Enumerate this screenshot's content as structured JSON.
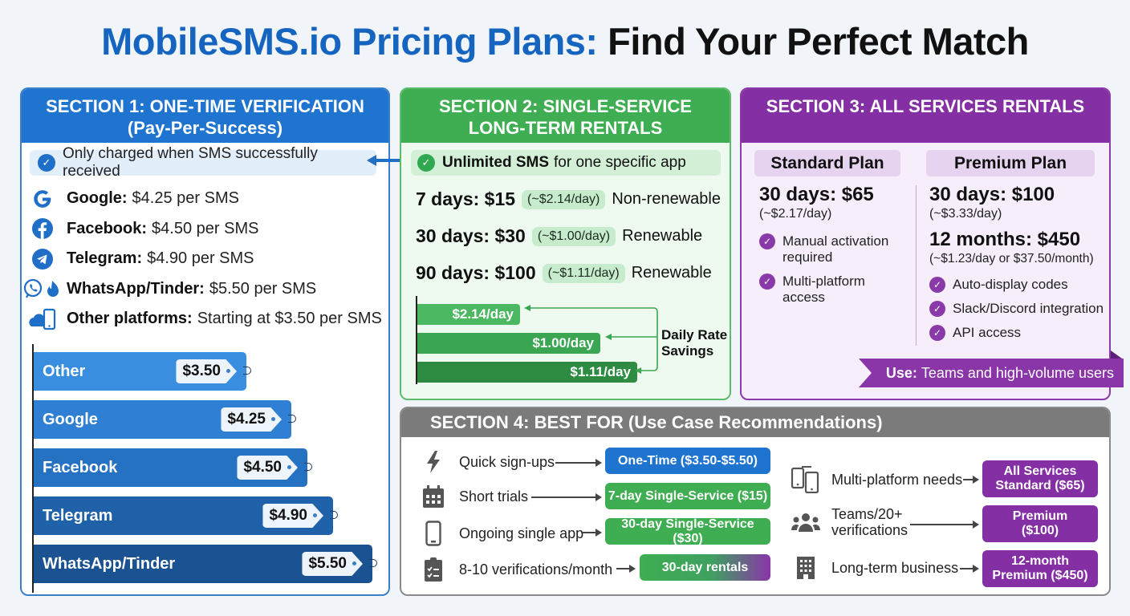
{
  "header": {
    "title_brand": "MobileSMS.io Pricing Plans:",
    "title_rest": "Find Your Perfect Match"
  },
  "colors": {
    "brand_blue": "#1565c0",
    "section1": "#1f74d0",
    "section2": "#3fae52",
    "section3": "#842fa4",
    "section4": "#7b7b7b"
  },
  "section1": {
    "title_line1": "SECTION 1: ONE-TIME VERIFICATION",
    "title_line2": "(Pay-Per-Success)",
    "note": "Only charged when SMS successfully received",
    "platforms": [
      {
        "icon": "google-icon",
        "name": "Google:",
        "price": "$4.25 per SMS"
      },
      {
        "icon": "facebook-icon",
        "name": "Facebook:",
        "price": "$4.50 per SMS"
      },
      {
        "icon": "telegram-icon",
        "name": "Telegram:",
        "price": "$4.90 per SMS"
      },
      {
        "icon": "whatsapp-tinder-icon",
        "name": "WhatsApp/Tinder:",
        "price": "$5.50 per SMS"
      },
      {
        "icon": "cloud-phone-icon",
        "name": "Other platforms:",
        "price": "Starting at $3.50 per SMS"
      }
    ],
    "bars": [
      {
        "label": "Other",
        "value": "$3.50"
      },
      {
        "label": "Google",
        "value": "$4.25"
      },
      {
        "label": "Facebook",
        "value": "$4.50"
      },
      {
        "label": "Telegram",
        "value": "$4.90"
      },
      {
        "label": "WhatsApp/Tinder",
        "value": "$5.50"
      }
    ]
  },
  "section2": {
    "title_line1": "SECTION 2: SINGLE-SERVICE",
    "title_line2": "LONG-TERM RENTALS",
    "note_bold": "Unlimited SMS",
    "note_rest": "for one specific app",
    "rentals": [
      {
        "price": "7 days: $15",
        "daily": "(~$2.14/day)",
        "renewal": "Non-renewable"
      },
      {
        "price": "30 days: $30",
        "daily": "(~$1.00/day)",
        "renewal": "Renewable"
      },
      {
        "price": "90 days: $100",
        "daily": "(~$1.11/day)",
        "renewal": "Renewable"
      }
    ],
    "bars": [
      {
        "label": "$2.14/day"
      },
      {
        "label": "$1.00/day"
      },
      {
        "label": "$1.11/day"
      }
    ],
    "bars_caption_line1": "Daily Rate",
    "bars_caption_line2": "Savings"
  },
  "section3": {
    "title": "SECTION 3: ALL SERVICES RENTALS",
    "standard": {
      "name": "Standard Plan",
      "price": "30 days: $65",
      "daily": "(~$2.17/day)",
      "features": [
        {
          "line1": "Manual activation",
          "line2": "required"
        },
        {
          "line1": "Multi-platform",
          "line2": "access"
        }
      ]
    },
    "premium": {
      "name": "Premium Plan",
      "price1": "30 days: $100",
      "daily1": "(~$3.33/day)",
      "price2": "12 months: $450",
      "daily2": "(~$1.23/day or $37.50/month)",
      "features": [
        "Auto-display codes",
        "Slack/Discord integration",
        "API access"
      ]
    },
    "use_label": "Use:",
    "use_text": "Teams and high-volume users"
  },
  "section4": {
    "title": "SECTION 4: BEST FOR (Use Case Recommendations)",
    "left": [
      {
        "icon": "lightning-icon",
        "label": "Quick sign-ups",
        "badge": "One-Time ($3.50-$5.50)"
      },
      {
        "icon": "calendar-icon",
        "label": "Short trials",
        "badge": "7-day Single-Service ($15)"
      },
      {
        "icon": "phone-icon",
        "label": "Ongoing single app",
        "badge": "30-day Single-Service ($30)"
      },
      {
        "icon": "clipboard-checklist-icon",
        "label": "8-10 verifications/month",
        "badge": "30-day rentals"
      }
    ],
    "right": [
      {
        "icon": "multi-device-icon",
        "label": "Multi-platform needs",
        "badge_line1": "All Services",
        "badge_line2": "Standard ($65)"
      },
      {
        "icon": "team-icon",
        "label_line1": "Teams/20+",
        "label_line2": "verifications",
        "badge_line1": "Premium",
        "badge_line2": "($100)"
      },
      {
        "icon": "building-icon",
        "label": "Long-term business",
        "badge_line1": "12-month",
        "badge_line2": "Premium ($450)"
      }
    ]
  }
}
